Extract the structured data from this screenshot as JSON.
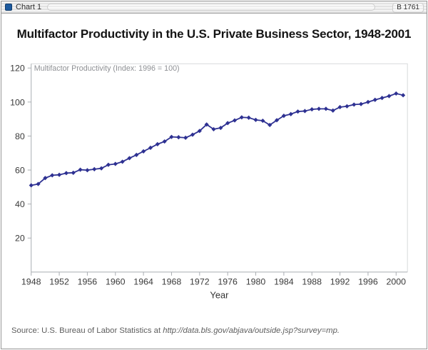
{
  "window": {
    "titlebar": {
      "icon": "chart-app-icon",
      "title": "Chart 1",
      "right_label": "B 1761"
    }
  },
  "chart": {
    "title": "Multifactor Productivity in the U.S. Private Business Sector, 1948-2001",
    "inner_label": "Multifactor Productivity (Index: 1996 = 100)",
    "xlabel": "Year",
    "source_prefix": "Source: U.S. Bureau of Labor Statistics at ",
    "source_url": "http://data.bls.gov/abjava/outside.jsp?survey=mp."
  },
  "chart_data": {
    "type": "line",
    "title": "Multifactor Productivity in the U.S. Private Business Sector, 1948-2001",
    "xlabel": "Year",
    "ylabel": "Multifactor Productivity (Index: 1996 = 100)",
    "xlim": [
      1948,
      2001
    ],
    "ylim": [
      0,
      122
    ],
    "yticks": [
      20,
      40,
      60,
      80,
      100,
      120
    ],
    "xticks": [
      1948,
      1952,
      1956,
      1960,
      1964,
      1968,
      1972,
      1976,
      1980,
      1984,
      1988,
      1992,
      1996,
      2000
    ],
    "grid": false,
    "legend": "none",
    "marker": "diamond",
    "line_color": "#2e3192",
    "axis_color": "#a9adb2",
    "frame_color": "#d7d9db",
    "tick_label_color": "#3a3a3a",
    "x": [
      1948,
      1949,
      1950,
      1951,
      1952,
      1953,
      1954,
      1955,
      1956,
      1957,
      1958,
      1959,
      1960,
      1961,
      1962,
      1963,
      1964,
      1965,
      1966,
      1967,
      1968,
      1969,
      1970,
      1971,
      1972,
      1973,
      1974,
      1975,
      1976,
      1977,
      1978,
      1979,
      1980,
      1981,
      1982,
      1983,
      1984,
      1985,
      1986,
      1987,
      1988,
      1989,
      1990,
      1991,
      1992,
      1993,
      1994,
      1995,
      1996,
      1997,
      1998,
      1999,
      2000,
      2001
    ],
    "values": [
      51.0,
      51.8,
      55.3,
      56.9,
      57.2,
      58.2,
      58.4,
      60.2,
      59.9,
      60.5,
      61.0,
      63.1,
      63.6,
      64.9,
      67.0,
      68.9,
      71.0,
      73.1,
      75.2,
      76.8,
      79.5,
      79.3,
      79.0,
      80.8,
      83.0,
      86.8,
      84.0,
      84.8,
      87.6,
      89.2,
      91.0,
      90.8,
      89.5,
      89.0,
      86.5,
      89.3,
      91.9,
      92.9,
      94.4,
      94.7,
      95.7,
      96.0,
      96.0,
      95.0,
      97.0,
      97.5,
      98.5,
      98.8,
      100.0,
      101.3,
      102.4,
      103.5,
      105.0,
      104.0
    ]
  }
}
